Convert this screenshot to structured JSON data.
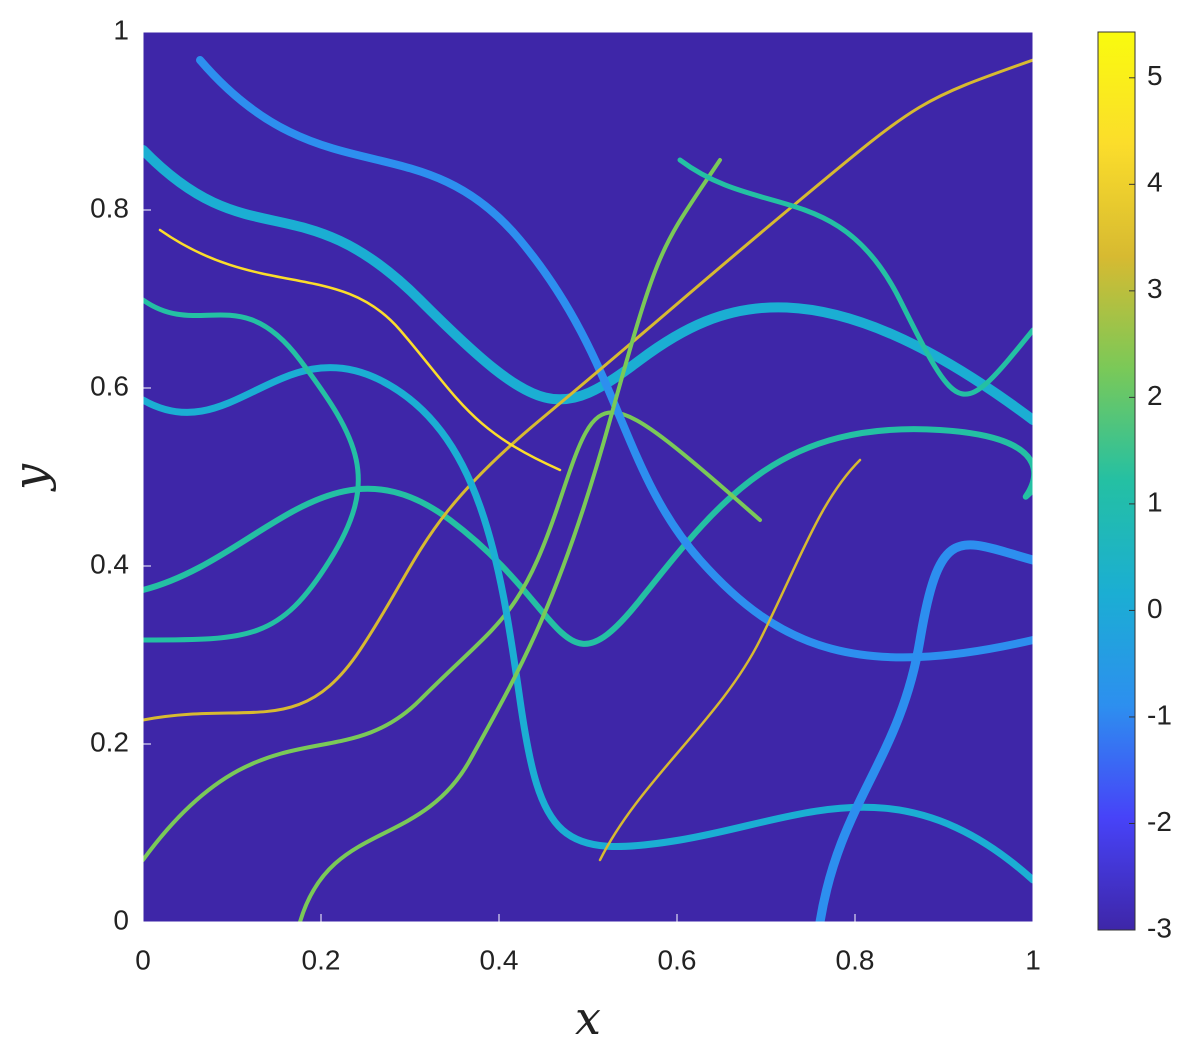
{
  "chart_data": {
    "type": "heatmap",
    "xlabel": "x",
    "ylabel": "y",
    "xlim": [
      0,
      1
    ],
    "ylim": [
      0,
      1
    ],
    "xticks": [
      0,
      0.2,
      0.4,
      0.6,
      0.8,
      1
    ],
    "yticks": [
      0,
      0.2,
      0.4,
      0.6,
      0.8,
      1
    ],
    "clim": [
      -3,
      5.43
    ],
    "cticks": [
      -3,
      -2,
      -1,
      0,
      1,
      2,
      3,
      4,
      5
    ],
    "colormap": [
      "#3e26a8",
      "#4743f8",
      "#2d8fef",
      "#1baed3",
      "#24c0a3",
      "#7ac958",
      "#d7ba31",
      "#fbdd2b",
      "#f9fb0e"
    ]
  }
}
